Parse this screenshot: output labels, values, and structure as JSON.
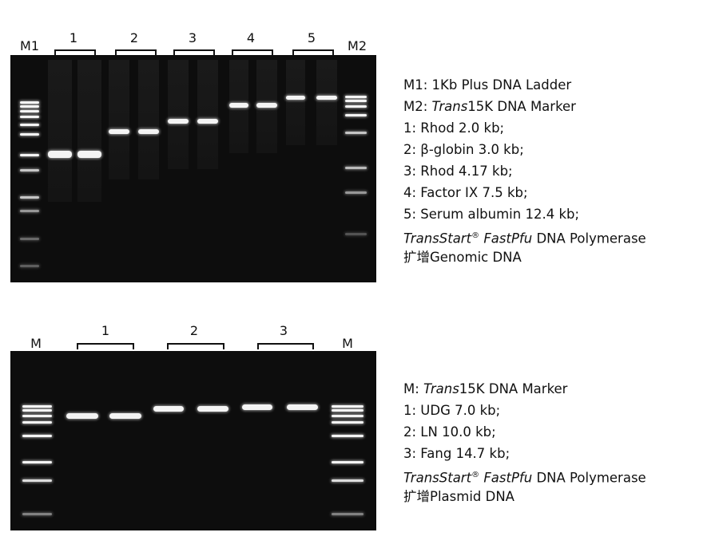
{
  "gel1": {
    "lane_labels": [
      "M1",
      "1",
      "2",
      "3",
      "4",
      "5",
      "M2"
    ],
    "legend": [
      [
        {
          "t": "M1: 1Kb Plus DNA Ladder"
        }
      ],
      [
        {
          "t": "M2: "
        },
        {
          "t": "Trans",
          "i": true
        },
        {
          "t": "15K DNA Marker"
        }
      ],
      [
        {
          "t": "1: Rhod 2.0 kb;"
        }
      ],
      [
        {
          "t": "2: β-globin 3.0 kb;"
        }
      ],
      [
        {
          "t": "3: Rhod 4.17 kb;"
        }
      ],
      [
        {
          "t": "4: Factor IX 7.5 kb;"
        }
      ],
      [
        {
          "t": "5: Serum albumin 12.4 kb;"
        }
      ],
      [
        {
          "t": "TransStart",
          "i": true
        },
        {
          "t": "®",
          "sup": true
        },
        {
          "t": " "
        },
        {
          "t": "FastPfu",
          "i": true
        },
        {
          "t": " DNA Polymerase"
        }
      ],
      [
        {
          "t": "扩增Genomic DNA"
        }
      ]
    ]
  },
  "gel2": {
    "lane_labels": [
      "M",
      "1",
      "2",
      "3",
      "M"
    ],
    "legend": [
      [
        {
          "t": "M: "
        },
        {
          "t": "Trans",
          "i": true
        },
        {
          "t": "15K DNA Marker"
        }
      ],
      [
        {
          "t": "1: UDG 7.0 kb;"
        }
      ],
      [
        {
          "t": "2: LN 10.0 kb;"
        }
      ],
      [
        {
          "t": "3: Fang 14.7 kb;"
        }
      ],
      [
        {
          "t": "TransStart",
          "i": true
        },
        {
          "t": "®",
          "sup": true
        },
        {
          "t": " "
        },
        {
          "t": "FastPfu",
          "i": true
        },
        {
          "t": " DNA Polymerase"
        }
      ],
      [
        {
          "t": "扩增Plasmid DNA"
        }
      ]
    ]
  },
  "colors": {
    "gel_background": "#0d0d0d",
    "band": "#f4f4f4",
    "text": "#111111"
  }
}
